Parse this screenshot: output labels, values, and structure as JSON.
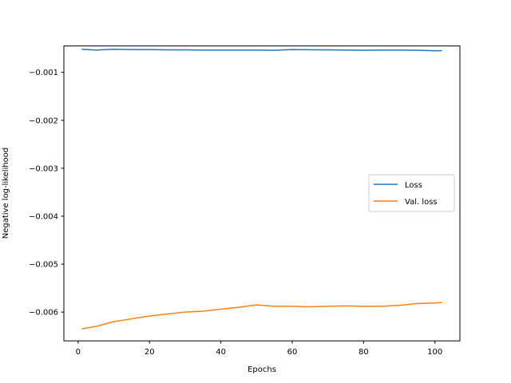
{
  "chart_data": {
    "type": "line",
    "title": "",
    "xlabel": "Epochs",
    "ylabel": "Negative log-likelihood",
    "xlim": [
      -4,
      107
    ],
    "ylim": [
      -0.0066,
      -0.00045
    ],
    "xticks": [
      0,
      20,
      40,
      60,
      80,
      100
    ],
    "xtick_labels": [
      "0",
      "20",
      "40",
      "60",
      "80",
      "100"
    ],
    "yticks": [
      -0.001,
      -0.002,
      -0.003,
      -0.004,
      -0.005,
      -0.006
    ],
    "ytick_labels": [
      "−0.001",
      "−0.002",
      "−0.003",
      "−0.004",
      "−0.005",
      "−0.006"
    ],
    "grid": false,
    "legend_position": "center-right",
    "series": [
      {
        "name": "Loss",
        "color": "#1f77b4",
        "x": [
          1,
          5,
          10,
          15,
          20,
          25,
          30,
          35,
          40,
          45,
          50,
          55,
          60,
          65,
          70,
          75,
          80,
          85,
          90,
          95,
          100,
          102
        ],
        "y": [
          -0.00052,
          -0.000535,
          -0.00052,
          -0.000525,
          -0.000525,
          -0.000532,
          -0.000532,
          -0.000535,
          -0.000535,
          -0.000535,
          -0.000535,
          -0.00054,
          -0.000525,
          -0.00053,
          -0.000532,
          -0.000535,
          -0.00054,
          -0.000535,
          -0.000535,
          -0.00054,
          -0.00055,
          -0.000548
        ]
      },
      {
        "name": "Val. loss",
        "color": "#ff7f0e",
        "x": [
          1,
          5,
          10,
          15,
          20,
          25,
          30,
          35,
          40,
          45,
          50,
          55,
          60,
          65,
          70,
          75,
          80,
          85,
          90,
          95,
          100,
          102
        ],
        "y": [
          -0.00635,
          -0.0063,
          -0.0062,
          -0.00614,
          -0.00608,
          -0.00604,
          -0.006,
          -0.00598,
          -0.00594,
          -0.0059,
          -0.00585,
          -0.00588,
          -0.00588,
          -0.00589,
          -0.00588,
          -0.00587,
          -0.00588,
          -0.00588,
          -0.00586,
          -0.00582,
          -0.00581,
          -0.0058
        ]
      }
    ]
  }
}
